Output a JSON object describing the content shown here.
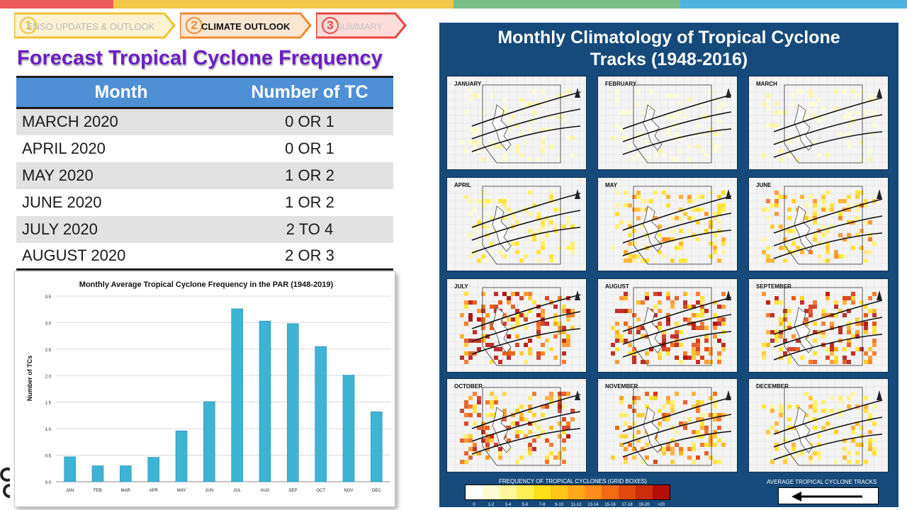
{
  "header": {
    "strip_colors": [
      "#ea5a59",
      "#f3c84a",
      "#79be87",
      "#4fb3e2"
    ],
    "steps": [
      {
        "num": "1",
        "label": "ENSO UPDATES & OUTLOOK",
        "active": false,
        "color": "#f1c232"
      },
      {
        "num": "2",
        "label": "CLIMATE OUTLOOK",
        "active": true,
        "color": "#ef8a32"
      },
      {
        "num": "3",
        "label": "SUMMARY",
        "active": false,
        "color": "#e8473f"
      }
    ]
  },
  "title": "Forecast Tropical Cyclone Frequency",
  "forecast_table": {
    "headers": [
      "Month",
      "Number of TC"
    ],
    "rows": [
      [
        "MARCH 2020",
        "0 OR 1"
      ],
      [
        "APRIL 2020",
        "0 OR 1"
      ],
      [
        "MAY 2020",
        "1 OR 2"
      ],
      [
        "JUNE 2020",
        "1 OR 2"
      ],
      [
        "JULY 2020",
        "2 TO 4"
      ],
      [
        "AUGUST 2020",
        "2 OR 3"
      ]
    ]
  },
  "chart_data": {
    "type": "bar",
    "title": "Monthly Average Tropical Cyclone Frequency in the PAR (1948-2019)",
    "xlabel": "",
    "ylabel": "Number of TCs",
    "categories": [
      "JAN",
      "FEB",
      "MAR",
      "APR",
      "MAY",
      "JUN",
      "JUL",
      "AUG",
      "SEP",
      "OCT",
      "NOV",
      "DEC"
    ],
    "values": [
      0.47,
      0.3,
      0.3,
      0.46,
      0.96,
      1.51,
      3.26,
      3.03,
      2.98,
      2.55,
      2.01,
      1.32
    ],
    "ylim": [
      0,
      3.5
    ],
    "yticks": [
      "0.0",
      "0.5",
      "1.0",
      "1.5",
      "2.0",
      "2.5",
      "3.0",
      "3.5"
    ],
    "grid": true,
    "bar_color": "#3fb3d6"
  },
  "climatology": {
    "title_line1": "Monthly Climatology of Tropical Cyclone",
    "title_line2": "Tracks (1948-2016)",
    "months": [
      "JANUARY",
      "FEBRUARY",
      "MARCH",
      "APRIL",
      "MAY",
      "JUNE",
      "JULY",
      "AUGUST",
      "SEPTEMBER",
      "OCTOBER",
      "NOVEMBER",
      "DECEMBER"
    ],
    "intensity": [
      0.15,
      0.12,
      0.15,
      0.3,
      0.5,
      0.55,
      0.95,
      0.95,
      0.9,
      0.8,
      0.7,
      0.45
    ],
    "legend_title": "FREQUENCY OF TROPICAL CYCLONES (GRID BOXES)",
    "legend_labels": [
      "0",
      "1-2",
      "3-4",
      "5-6",
      "7-8",
      "9-10",
      "11-12",
      "13-14",
      "15-16",
      "17-18",
      "19-20",
      ">20"
    ],
    "legend_colors": [
      "#ffffff",
      "#fffbd0",
      "#fff59a",
      "#ffee55",
      "#ffe11a",
      "#ffc61a",
      "#ffa91a",
      "#ff8c1a",
      "#f26a14",
      "#e04a10",
      "#cc2e0c",
      "#b30f0a"
    ],
    "avg_label": "AVERAGE TROPICAL CYCLONE TRACKS",
    "arrow_glyph": "⟵"
  }
}
